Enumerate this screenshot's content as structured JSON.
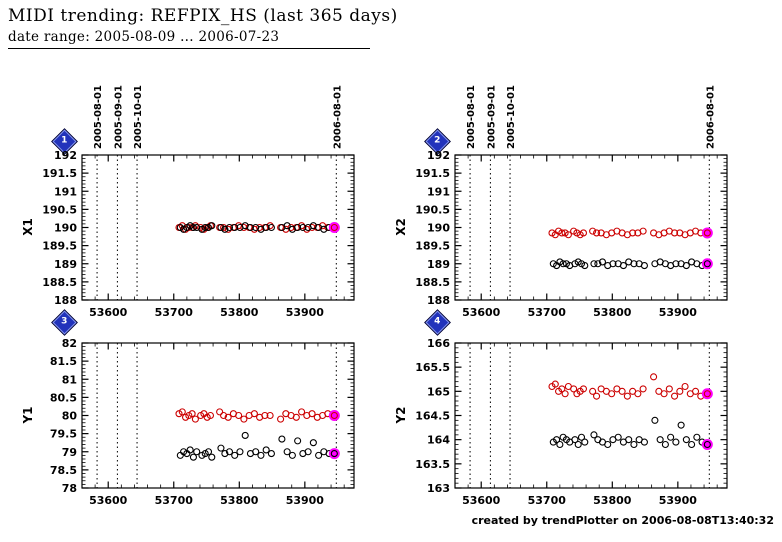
{
  "header": {
    "title": "MIDI trending: REFPIX_HS (last 365 days)",
    "subtitle": "date range: 2005-08-09 ... 2006-07-23"
  },
  "footer": {
    "credit": "created by trendPlotter on 2006-08-08T13:40:32"
  },
  "colors": {
    "red_series": "#cc0000",
    "black_series": "#000000",
    "latest_fill": "#ff00ff",
    "badge_blue": "#2233bb",
    "axis": "#000000"
  },
  "chart_data": [
    {
      "type": "scatter",
      "badge": "1",
      "ylabel": "X1",
      "xlim": [
        53560,
        53975
      ],
      "ylim": [
        188,
        192
      ],
      "xticks": [
        53600,
        53700,
        53800,
        53900
      ],
      "yticks": [
        188,
        188.5,
        189,
        189.5,
        190,
        190.5,
        191,
        191.5,
        192
      ],
      "x_minor_step": 20,
      "y_minor_step": 0.1,
      "show_top_labels": true,
      "vlines": [
        {
          "x": 53583,
          "label": "2005-08-01"
        },
        {
          "x": 53614,
          "label": "2005-09-01"
        },
        {
          "x": 53644,
          "label": "2005-10-01"
        },
        {
          "x": 53948,
          "label": "2006-08-01"
        }
      ],
      "series": [
        {
          "name": "red",
          "color": "#cc0000",
          "x": [
            53708,
            53713,
            53718,
            53723,
            53728,
            53733,
            53741,
            53746,
            53751,
            53756,
            53770,
            53776,
            53783,
            53791,
            53799,
            53807,
            53815,
            53823,
            53831,
            53839,
            53847,
            53863,
            53871,
            53879,
            53887,
            53895,
            53903,
            53911,
            53919,
            53927,
            53935
          ],
          "y": [
            190.0,
            190.05,
            189.95,
            190.0,
            190.0,
            190.05,
            190.0,
            189.95,
            190.0,
            190.05,
            190.0,
            190.0,
            189.95,
            190.0,
            190.05,
            190.0,
            190.0,
            189.95,
            190.0,
            190.0,
            190.05,
            190.0,
            189.95,
            190.0,
            190.0,
            190.05,
            189.95,
            190.0,
            190.0,
            190.05,
            190.0
          ]
        },
        {
          "name": "black",
          "color": "#000000",
          "x": [
            53710,
            53715,
            53720,
            53725,
            53730,
            53735,
            53743,
            53748,
            53753,
            53758,
            53772,
            53778,
            53785,
            53793,
            53801,
            53809,
            53817,
            53825,
            53833,
            53841,
            53849,
            53865,
            53873,
            53881,
            53889,
            53897,
            53905,
            53913,
            53921,
            53929,
            53937
          ],
          "y": [
            190.0,
            189.95,
            190.0,
            190.05,
            190.0,
            190.0,
            189.95,
            190.0,
            190.0,
            190.05,
            190.0,
            189.95,
            190.0,
            190.0,
            190.0,
            190.05,
            190.0,
            190.0,
            189.95,
            190.0,
            190.0,
            190.0,
            190.05,
            189.95,
            190.0,
            190.0,
            190.0,
            190.05,
            190.0,
            189.95,
            190.0
          ]
        }
      ],
      "latest": {
        "x": [
          53945
        ],
        "y": [
          190.0
        ],
        "ring": [
          "#cc0000"
        ]
      }
    },
    {
      "type": "scatter",
      "badge": "2",
      "ylabel": "X2",
      "xlim": [
        53560,
        53975
      ],
      "ylim": [
        188,
        192
      ],
      "xticks": [
        53600,
        53700,
        53800,
        53900
      ],
      "yticks": [
        188,
        188.5,
        189,
        189.5,
        190,
        190.5,
        191,
        191.5,
        192
      ],
      "x_minor_step": 20,
      "y_minor_step": 0.1,
      "show_top_labels": true,
      "vlines": [
        {
          "x": 53583,
          "label": "2005-08-01"
        },
        {
          "x": 53614,
          "label": "2005-09-01"
        },
        {
          "x": 53644,
          "label": "2005-10-01"
        },
        {
          "x": 53948,
          "label": "2006-08-01"
        }
      ],
      "series": [
        {
          "name": "red",
          "color": "#cc0000",
          "x": [
            53708,
            53713,
            53718,
            53723,
            53728,
            53733,
            53741,
            53746,
            53751,
            53756,
            53770,
            53776,
            53783,
            53791,
            53799,
            53807,
            53815,
            53823,
            53831,
            53839,
            53847,
            53863,
            53871,
            53879,
            53887,
            53895,
            53903,
            53911,
            53919,
            53927,
            53935
          ],
          "y": [
            189.85,
            189.8,
            189.9,
            189.85,
            189.85,
            189.8,
            189.9,
            189.85,
            189.8,
            189.85,
            189.9,
            189.85,
            189.85,
            189.8,
            189.85,
            189.9,
            189.85,
            189.8,
            189.85,
            189.85,
            189.9,
            189.85,
            189.8,
            189.85,
            189.9,
            189.85,
            189.85,
            189.8,
            189.85,
            189.9,
            189.85
          ]
        },
        {
          "name": "black",
          "color": "#000000",
          "x": [
            53710,
            53715,
            53720,
            53725,
            53730,
            53735,
            53743,
            53748,
            53753,
            53758,
            53772,
            53778,
            53785,
            53793,
            53801,
            53809,
            53817,
            53825,
            53833,
            53841,
            53849,
            53865,
            53873,
            53881,
            53889,
            53897,
            53905,
            53913,
            53921,
            53929,
            53937
          ],
          "y": [
            189.0,
            188.95,
            189.05,
            189.0,
            189.0,
            188.95,
            189.0,
            189.05,
            189.0,
            188.95,
            189.0,
            189.0,
            189.05,
            188.95,
            189.0,
            189.0,
            188.95,
            189.05,
            189.0,
            189.0,
            188.95,
            189.0,
            189.05,
            189.0,
            188.95,
            189.0,
            189.0,
            188.95,
            189.05,
            189.0,
            188.95
          ]
        }
      ],
      "latest": {
        "x": [
          53945,
          53945
        ],
        "y": [
          189.85,
          189.0
        ],
        "ring": [
          "#cc0000",
          "#000000"
        ]
      }
    },
    {
      "type": "scatter",
      "badge": "3",
      "ylabel": "Y1",
      "xlim": [
        53560,
        53975
      ],
      "ylim": [
        78,
        82
      ],
      "xticks": [
        53600,
        53700,
        53800,
        53900
      ],
      "yticks": [
        78,
        78.5,
        79,
        79.5,
        80,
        80.5,
        81,
        81.5,
        82
      ],
      "x_minor_step": 20,
      "y_minor_step": 0.1,
      "show_top_labels": false,
      "vlines": [
        {
          "x": 53583,
          "label": "2005-08-01"
        },
        {
          "x": 53614,
          "label": "2005-09-01"
        },
        {
          "x": 53644,
          "label": "2005-10-01"
        },
        {
          "x": 53948,
          "label": "2006-08-01"
        }
      ],
      "series": [
        {
          "name": "red",
          "color": "#cc0000",
          "x": [
            53708,
            53713,
            53718,
            53723,
            53728,
            53733,
            53741,
            53746,
            53751,
            53756,
            53770,
            53776,
            53783,
            53791,
            53799,
            53807,
            53815,
            53823,
            53831,
            53839,
            53847,
            53863,
            53871,
            53879,
            53887,
            53895,
            53903,
            53911,
            53919,
            53927,
            53935
          ],
          "y": [
            80.05,
            80.1,
            79.95,
            80.0,
            80.05,
            79.9,
            80.0,
            80.05,
            79.95,
            80.0,
            80.1,
            80.0,
            79.95,
            80.05,
            80.0,
            79.9,
            80.0,
            80.05,
            79.95,
            80.0,
            80.0,
            79.9,
            80.05,
            80.0,
            79.95,
            80.1,
            80.0,
            80.05,
            79.95,
            80.0,
            80.05
          ]
        },
        {
          "name": "black",
          "color": "#000000",
          "x": [
            53710,
            53715,
            53720,
            53725,
            53730,
            53735,
            53743,
            53748,
            53753,
            53758,
            53772,
            53778,
            53785,
            53793,
            53801,
            53809,
            53817,
            53825,
            53833,
            53841,
            53849,
            53865,
            53873,
            53881,
            53889,
            53897,
            53905,
            53913,
            53921,
            53929,
            53937
          ],
          "y": [
            78.9,
            79.0,
            78.95,
            79.05,
            78.85,
            79.0,
            78.9,
            78.95,
            79.0,
            78.85,
            79.1,
            78.95,
            79.0,
            78.9,
            79.0,
            79.45,
            78.95,
            79.0,
            78.9,
            79.05,
            78.95,
            79.35,
            79.0,
            78.9,
            79.3,
            78.95,
            79.0,
            79.25,
            78.9,
            79.0,
            78.95
          ]
        }
      ],
      "latest": {
        "x": [
          53945,
          53945
        ],
        "y": [
          80.0,
          78.95
        ],
        "ring": [
          "#cc0000",
          "#000000"
        ]
      }
    },
    {
      "type": "scatter",
      "badge": "4",
      "ylabel": "Y2",
      "xlim": [
        53560,
        53975
      ],
      "ylim": [
        163,
        166
      ],
      "xticks": [
        53600,
        53700,
        53800,
        53900
      ],
      "yticks": [
        163,
        163.5,
        164,
        164.5,
        165,
        165.5,
        166
      ],
      "x_minor_step": 20,
      "y_minor_step": 0.1,
      "show_top_labels": false,
      "vlines": [
        {
          "x": 53583,
          "label": "2005-08-01"
        },
        {
          "x": 53614,
          "label": "2005-09-01"
        },
        {
          "x": 53644,
          "label": "2005-10-01"
        },
        {
          "x": 53948,
          "label": "2006-08-01"
        }
      ],
      "series": [
        {
          "name": "red",
          "color": "#cc0000",
          "x": [
            53708,
            53713,
            53718,
            53723,
            53728,
            53733,
            53741,
            53746,
            53751,
            53756,
            53770,
            53776,
            53783,
            53791,
            53799,
            53807,
            53815,
            53823,
            53831,
            53839,
            53847,
            53863,
            53871,
            53879,
            53887,
            53895,
            53903,
            53911,
            53919,
            53927,
            53935
          ],
          "y": [
            165.1,
            165.15,
            165.0,
            165.05,
            164.95,
            165.1,
            165.05,
            164.95,
            165.0,
            165.05,
            165.0,
            164.9,
            165.05,
            165.0,
            164.95,
            165.05,
            165.0,
            164.9,
            165.0,
            164.95,
            165.05,
            165.3,
            165.0,
            164.95,
            165.05,
            164.9,
            165.0,
            165.1,
            164.95,
            165.0,
            164.9
          ]
        },
        {
          "name": "black",
          "color": "#000000",
          "x": [
            53710,
            53715,
            53720,
            53725,
            53730,
            53735,
            53743,
            53748,
            53753,
            53758,
            53772,
            53778,
            53785,
            53793,
            53801,
            53809,
            53817,
            53825,
            53833,
            53841,
            53849,
            53865,
            53873,
            53881,
            53889,
            53897,
            53905,
            53913,
            53921,
            53929,
            53937
          ],
          "y": [
            163.95,
            164.0,
            163.9,
            164.05,
            164.0,
            163.95,
            164.0,
            163.9,
            164.05,
            163.95,
            164.1,
            164.0,
            163.95,
            163.9,
            164.0,
            164.05,
            163.95,
            164.0,
            163.9,
            164.0,
            163.95,
            164.4,
            164.0,
            163.9,
            164.05,
            163.95,
            164.3,
            164.0,
            163.9,
            164.05,
            163.95
          ]
        }
      ],
      "latest": {
        "x": [
          53945,
          53945
        ],
        "y": [
          164.95,
          163.9
        ],
        "ring": [
          "#cc0000",
          "#000000"
        ]
      }
    }
  ]
}
